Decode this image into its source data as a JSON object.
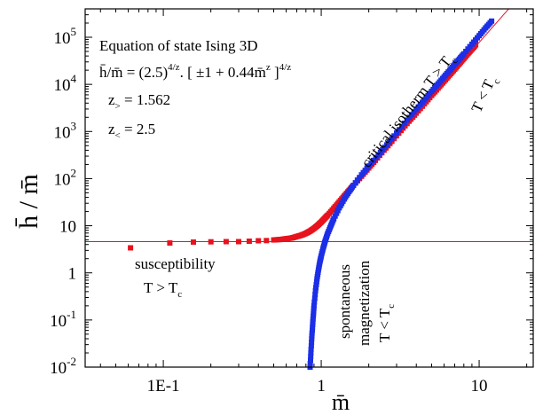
{
  "chart_data": {
    "type": "scatter",
    "title": "",
    "xlabel": "m̄",
    "ylabel": "h̄ / m̄",
    "xscale": "log",
    "yscale": "log",
    "xlim": [
      0.032,
      22
    ],
    "ylim": [
      0.01,
      400000
    ],
    "x_tick_labels": [
      "1E-1",
      "1",
      "10"
    ],
    "x_tick_values": [
      0.1,
      1,
      10
    ],
    "y_tick_values": [
      0.01,
      0.1,
      1,
      10,
      100,
      1000,
      10000,
      100000
    ],
    "y_tick_labels": [
      {
        "base": "10",
        "exp": "-2"
      },
      {
        "base": "10",
        "exp": "-1"
      },
      {
        "base": "1",
        "exp": ""
      },
      {
        "base": "10",
        "exp": ""
      },
      {
        "base": "10",
        "exp": "2"
      },
      {
        "base": "10",
        "exp": "3"
      },
      {
        "base": "10",
        "exp": "4"
      },
      {
        "base": "10",
        "exp": "5"
      }
    ],
    "legend_box": {
      "line1": "Equation of state Ising 3D",
      "eq_lhs": "h̄/m̄ = (2.5)",
      "eq_exp1": "4/z",
      "eq_mid": ". [ ±1 + 0.44m̄",
      "eq_expz": "z",
      "eq_close": " ]",
      "eq_exp2": "4/z",
      "zgt_base": "z",
      "zgt_sub": ">",
      "zgt_val": " = 1.562",
      "zlt_base": "z",
      "zlt_sub": "<",
      "zlt_val": " = 2.5"
    },
    "annotations": {
      "crit_text": "critical isotherm T > T",
      "crit_sub": "c",
      "tlt_text": "T < T",
      "tlt_sub": "c",
      "susc_line1": "susceptibility",
      "susc_line2": "T > T",
      "susc_sub": "c",
      "spont1": "spontaneous",
      "spont2": "magnetization",
      "spont3": "T < T",
      "spont_sub": "c"
    },
    "series": [
      {
        "color": "#e8121d",
        "points": [
          [
            0.062,
            3.4
          ],
          [
            0.11,
            4.3
          ],
          [
            0.155,
            4.5
          ],
          [
            0.2,
            4.55
          ],
          [
            0.25,
            4.6
          ],
          [
            0.3,
            4.6
          ],
          [
            0.35,
            4.7
          ],
          [
            0.4,
            4.8
          ],
          [
            0.45,
            4.85
          ],
          [
            0.5,
            5.0
          ],
          [
            0.55,
            5.1
          ],
          [
            0.6,
            5.3
          ],
          [
            0.65,
            5.5
          ],
          [
            0.7,
            5.9
          ],
          [
            0.75,
            6.3
          ],
          [
            0.8,
            6.9
          ],
          [
            0.85,
            7.7
          ],
          [
            0.9,
            8.8
          ],
          [
            0.95,
            10.2
          ],
          [
            1.0,
            12
          ],
          [
            1.05,
            14.2
          ],
          [
            1.1,
            16.8
          ],
          [
            1.2,
            23.5
          ],
          [
            1.3,
            32
          ],
          [
            1.4,
            43
          ],
          [
            1.5,
            56
          ],
          [
            1.6,
            72
          ],
          [
            1.8,
            112
          ],
          [
            2.0,
            168
          ],
          [
            2.2,
            243
          ],
          [
            2.5,
            400
          ],
          [
            2.8,
            620
          ],
          [
            3.2,
            1050
          ],
          [
            3.6,
            1650
          ],
          [
            4.0,
            2450
          ],
          [
            4.5,
            3850
          ],
          [
            5.0,
            5800
          ],
          [
            5.5,
            8300
          ],
          [
            6.0,
            11600
          ],
          [
            6.5,
            15800
          ],
          [
            7.0,
            21000
          ],
          [
            7.5,
            27500
          ],
          [
            8.0,
            35500
          ],
          [
            8.5,
            45000
          ],
          [
            9.0,
            56000
          ],
          [
            9.5,
            69000
          ]
        ]
      },
      {
        "color": "#1c2fe6",
        "points": [
          [
            0.85,
            0.01
          ],
          [
            0.86,
            0.02
          ],
          [
            0.87,
            0.04
          ],
          [
            0.88,
            0.07
          ],
          [
            0.89,
            0.12
          ],
          [
            0.9,
            0.2
          ],
          [
            0.92,
            0.42
          ],
          [
            0.94,
            0.75
          ],
          [
            0.96,
            1.15
          ],
          [
            0.98,
            1.7
          ],
          [
            1.0,
            2.3
          ],
          [
            1.03,
            3.4
          ],
          [
            1.06,
            4.8
          ],
          [
            1.1,
            6.9
          ],
          [
            1.15,
            10
          ],
          [
            1.2,
            14
          ],
          [
            1.3,
            24
          ],
          [
            1.4,
            37
          ],
          [
            1.5,
            53
          ],
          [
            1.6,
            72
          ],
          [
            1.8,
            120
          ],
          [
            2.0,
            185
          ],
          [
            2.3,
            320
          ],
          [
            2.6,
            520
          ],
          [
            3.0,
            930
          ],
          [
            3.5,
            1750
          ],
          [
            4.0,
            2950
          ],
          [
            4.5,
            4700
          ],
          [
            5.0,
            7100
          ],
          [
            5.5,
            10300
          ],
          [
            6.0,
            14500
          ],
          [
            6.5,
            19800
          ],
          [
            7.0,
            26500
          ],
          [
            7.5,
            34500
          ],
          [
            8.0,
            44500
          ],
          [
            9.0,
            71000
          ],
          [
            10.0,
            108000
          ],
          [
            11.0,
            158000
          ],
          [
            12.0,
            220000
          ]
        ]
      }
    ],
    "lines": [
      {
        "name": "critical isotherm",
        "color": "#e8121d",
        "kind": "power",
        "coef": 12.3,
        "exponent": 3.8
      },
      {
        "name": "susceptibility asymptote",
        "color": "#e8121d",
        "kind": "constant",
        "value": 4.6
      }
    ]
  }
}
